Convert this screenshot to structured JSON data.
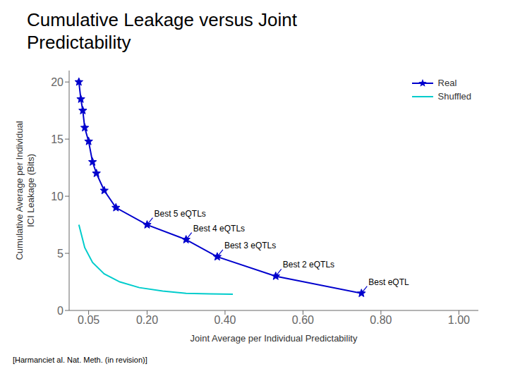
{
  "chart_data": {
    "type": "line",
    "title": "Cumulative Leakage versus Joint\nPredictability",
    "xlabel": "Joint Average per Individual Predictability",
    "ylabel": "Cumulative Average per Individual\nICI Leakage (Bits)",
    "footnote": "[Harmanciet al. Nat. Meth. (in revision)]",
    "series": [
      {
        "name": "Real",
        "color": "#0000CD",
        "marker": "star",
        "line_style": "solid",
        "x": [
          0.025,
          0.03,
          0.035,
          0.04,
          0.05,
          0.06,
          0.07,
          0.09,
          0.12,
          0.2,
          0.3,
          0.38,
          0.53,
          0.75
        ],
        "values": [
          20.0,
          18.5,
          17.5,
          16.0,
          14.8,
          13.0,
          12.0,
          10.5,
          9.0,
          7.5,
          6.2,
          4.7,
          3.0,
          1.5
        ]
      },
      {
        "name": "Shuffled",
        "color": "#00CCCC",
        "marker": "none",
        "line_style": "solid",
        "x": [
          0.025,
          0.04,
          0.06,
          0.09,
          0.13,
          0.18,
          0.24,
          0.3,
          0.36,
          0.42
        ],
        "values": [
          7.5,
          5.5,
          4.2,
          3.2,
          2.5,
          2.0,
          1.7,
          1.5,
          1.45,
          1.42
        ]
      }
    ],
    "annotations": [
      {
        "text": "Best 5 eQTLs",
        "x": 0.2,
        "y": 7.5
      },
      {
        "text": "Best 4 eQTLs",
        "x": 0.3,
        "y": 6.2
      },
      {
        "text": "Best 3 eQTLs",
        "x": 0.38,
        "y": 4.7
      },
      {
        "text": "Best 2 eQTLs",
        "x": 0.53,
        "y": 3.0
      },
      {
        "text": "Best eQTL",
        "x": 0.75,
        "y": 1.5
      }
    ],
    "xlim": [
      0.0,
      1.05
    ],
    "ylim": [
      0.0,
      21.0
    ],
    "xticks": [
      0.05,
      {
        "value": 0.2,
        "label": "0.20"
      },
      {
        "value": 0.4,
        "label": "0.40"
      },
      {
        "value": 0.6,
        "label": "0.60"
      },
      {
        "value": 0.8,
        "label": "0.80"
      },
      {
        "value": 1.0,
        "label": "1.00"
      }
    ],
    "yticks": [
      0,
      5,
      10,
      15,
      20
    ],
    "grid": false,
    "legend": "upper right"
  }
}
